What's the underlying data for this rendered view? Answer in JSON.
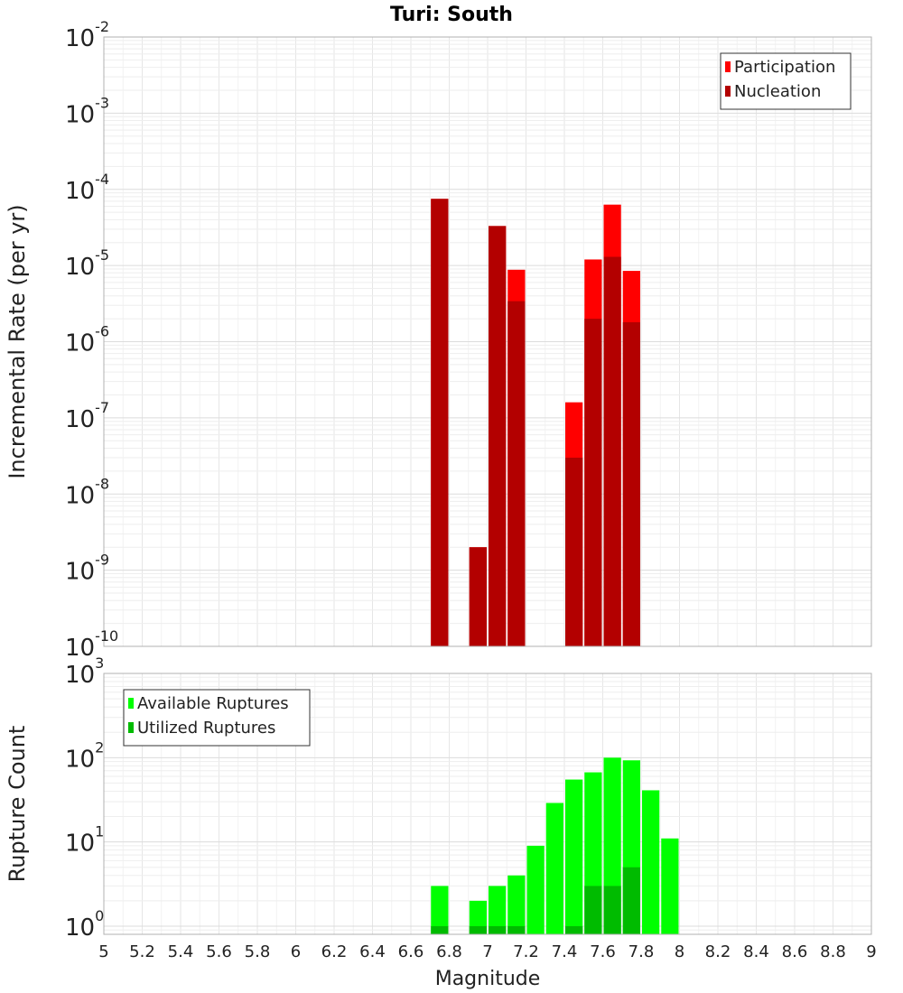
{
  "chart_data": [
    {
      "type": "bar",
      "title": "Turi: South",
      "ylabel": "Incremental Rate (per yr)",
      "yscale": "log",
      "ylim": [
        1e-10,
        0.01
      ],
      "xlim": [
        5,
        9
      ],
      "bar_width": 0.1,
      "legend": {
        "position": "top-right"
      },
      "series": [
        {
          "name": "Participation",
          "color": "#ff0000",
          "x": [
            6.75,
            6.95,
            7.05,
            7.15,
            7.45,
            7.55,
            7.65,
            7.75
          ],
          "values": [
            7.5e-05,
            2e-09,
            3.3e-05,
            8.8e-06,
            1.6e-07,
            1.2e-05,
            6.3e-05,
            8.5e-06
          ]
        },
        {
          "name": "Nucleation",
          "color": "#b30000",
          "x": [
            6.75,
            6.95,
            7.05,
            7.15,
            7.45,
            7.55,
            7.65,
            7.75
          ],
          "values": [
            7.5e-05,
            2e-09,
            3.3e-05,
            3.4e-06,
            3e-08,
            2e-06,
            1.3e-05,
            1.8e-06
          ]
        }
      ],
      "yticks": [
        {
          "base": "10",
          "exp": "-10"
        },
        {
          "base": "10",
          "exp": "-9"
        },
        {
          "base": "10",
          "exp": "-8"
        },
        {
          "base": "10",
          "exp": "-7"
        },
        {
          "base": "10",
          "exp": "-6"
        },
        {
          "base": "10",
          "exp": "-5"
        },
        {
          "base": "10",
          "exp": "-4"
        },
        {
          "base": "10",
          "exp": "-3"
        },
        {
          "base": "10",
          "exp": "-2"
        }
      ]
    },
    {
      "type": "bar",
      "xlabel": "Magnitude",
      "ylabel": "Rupture Count",
      "yscale": "log",
      "ylim": [
        0.8,
        1000
      ],
      "xlim": [
        5,
        9
      ],
      "bar_width": 0.1,
      "legend": {
        "position": "top-left"
      },
      "series": [
        {
          "name": "Available Ruptures",
          "color": "#00ff00",
          "x": [
            6.75,
            6.95,
            7.05,
            7.15,
            7.25,
            7.35,
            7.45,
            7.55,
            7.65,
            7.75,
            7.85,
            7.95
          ],
          "values": [
            3,
            2,
            3,
            4,
            9,
            29,
            55,
            67,
            100,
            93,
            41,
            11
          ]
        },
        {
          "name": "Utilized Ruptures",
          "color": "#00bb00",
          "x": [
            6.75,
            6.95,
            7.05,
            7.15,
            7.45,
            7.55,
            7.65,
            7.75
          ],
          "values": [
            1,
            1,
            1,
            1,
            1,
            3,
            3,
            5
          ]
        }
      ],
      "yticks": [
        {
          "base": "10",
          "exp": "0"
        },
        {
          "base": "10",
          "exp": "1"
        },
        {
          "base": "10",
          "exp": "2"
        },
        {
          "base": "10",
          "exp": "3"
        }
      ],
      "xticks": [
        "5",
        "5.2",
        "5.4",
        "5.6",
        "5.8",
        "6",
        "6.2",
        "6.4",
        "6.6",
        "6.8",
        "7",
        "7.2",
        "7.4",
        "7.6",
        "7.8",
        "8",
        "8.2",
        "8.4",
        "8.6",
        "8.8",
        "9"
      ]
    }
  ]
}
